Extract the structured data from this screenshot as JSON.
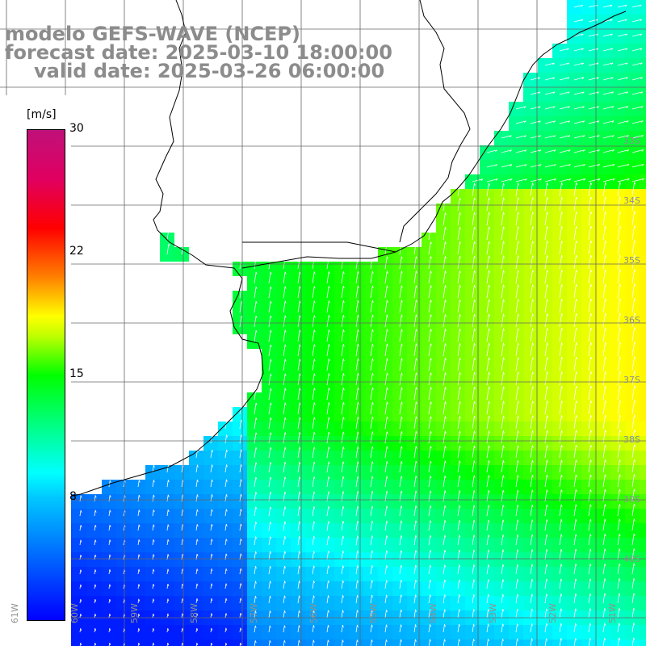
{
  "header": {
    "line1": "modelo GEFS-WAVE (NCEP)",
    "line2": "forecast date: 2025-03-10 18:00:00",
    "line3": "valid date: 2025-03-26 06:00:00"
  },
  "colorbar": {
    "unit": "[m/s]",
    "ticks": [
      {
        "label": "30",
        "value": 30
      },
      {
        "label": "22",
        "value": 22
      },
      {
        "label": "15",
        "value": 15
      },
      {
        "label": "8",
        "value": 8
      }
    ],
    "range": [
      0,
      30
    ]
  },
  "axes": {
    "lon_labels": [
      "61W",
      "60W",
      "59W",
      "58W",
      "57W",
      "56W",
      "55W",
      "54W",
      "53W",
      "52W",
      "51W"
    ],
    "lat_labels": [
      "33S",
      "34S",
      "35S",
      "36S",
      "37S",
      "38S",
      "39S",
      "40S"
    ]
  },
  "colors": {
    "land": "#ffffff",
    "grid": "#666666",
    "coast": "#000000",
    "title": "#8c8c8c"
  }
}
